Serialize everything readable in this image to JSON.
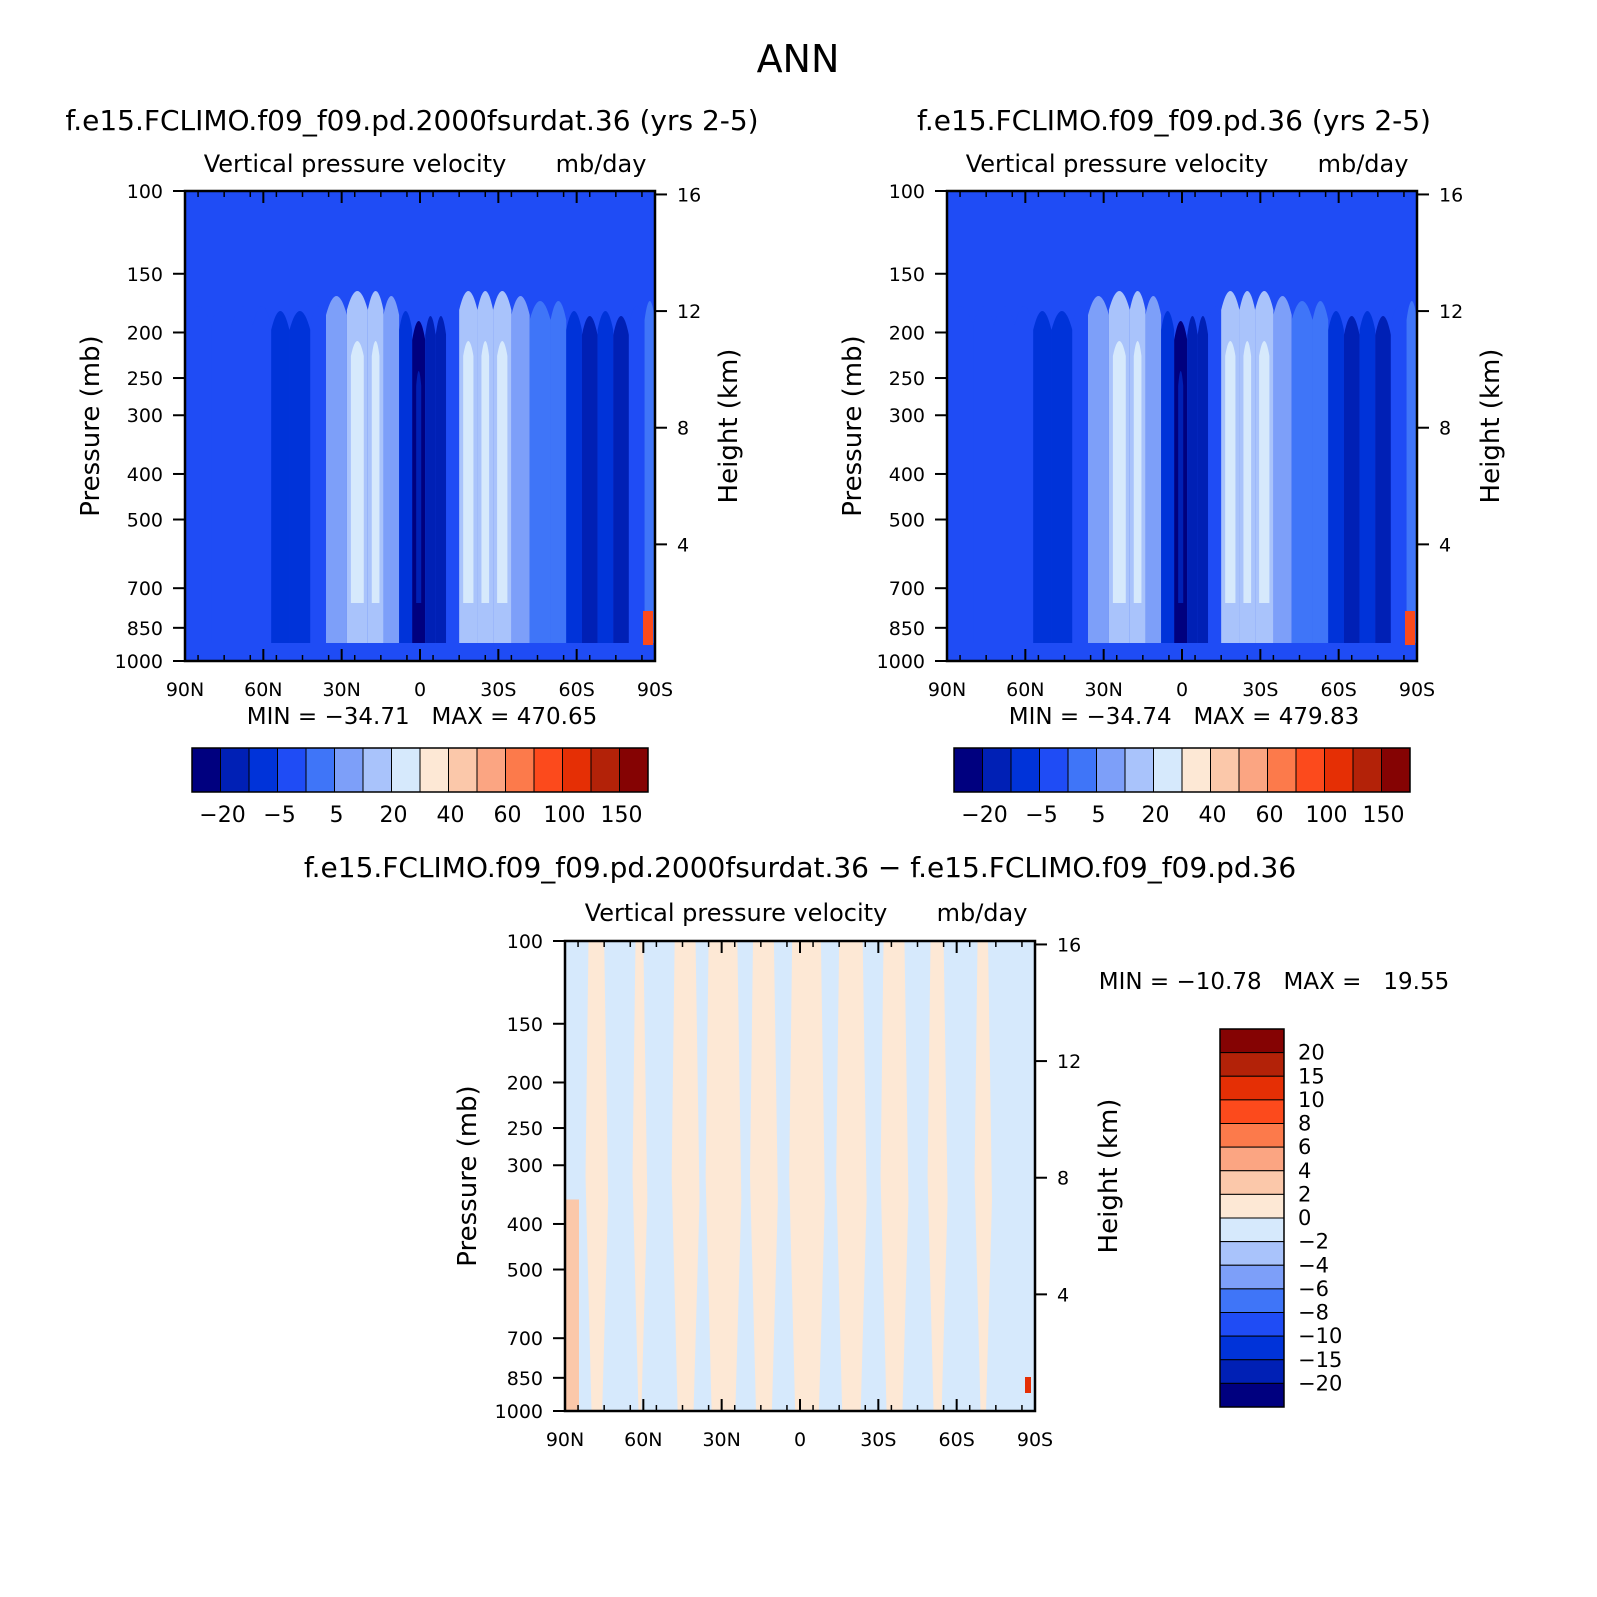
{
  "page_title": "ANN",
  "colors": {
    "seq": [
      "#00007f",
      "#0020b5",
      "#0033d9",
      "#1f4cf5",
      "#3f75f8",
      "#7d9ff9",
      "#a9c3fb",
      "#d6e9fc",
      "#fde8d5",
      "#fbc8aa",
      "#fba582",
      "#fc7a4b",
      "#fc4a1c",
      "#e52f05",
      "#b32208",
      "#850303"
    ],
    "diff": [
      "#00007f",
      "#0020b5",
      "#0033d9",
      "#1f4cf5",
      "#3f75f8",
      "#7d9ff9",
      "#a9c3fb",
      "#d6e9fc",
      "#fde8d5",
      "#fbc8aa",
      "#fba582",
      "#fc7a4b",
      "#fc4a1c",
      "#e52f05",
      "#b32208",
      "#850303"
    ]
  },
  "chart_data": [
    {
      "type": "contour",
      "title": "f.e15.FCLIMO.f09_f09.pd.2000fsurdat.36 (yrs 2-5)",
      "subtitle_left": "Vertical pressure velocity",
      "subtitle_right": "mb/day",
      "xlabel": "",
      "ylabel": "Pressure (mb)",
      "ylabel_right": "Height (km)",
      "x_ticks": [
        "90N",
        "60N",
        "30N",
        "0",
        "30S",
        "60S",
        "90S"
      ],
      "y_ticks": [
        "100",
        "150",
        "200",
        "250",
        "300",
        "400",
        "500",
        "700",
        "850",
        "1000"
      ],
      "y_right_ticks": [
        "16",
        "12",
        "8",
        "4"
      ],
      "min_label": "MIN",
      "min_value": "-34.71",
      "max_label": "MAX",
      "max_value": "470.65",
      "stats_text": "MIN = −34.71   MAX = 470.65",
      "colorbar_labels": [
        "−20",
        "−5",
        "5",
        "20",
        "40",
        "60",
        "100",
        "150"
      ],
      "fields": {
        "columns_lat": [
          -90,
          -80,
          -72,
          -64,
          -57,
          -50,
          -42,
          -36,
          -28,
          -20,
          -14,
          -8,
          -3,
          2,
          6,
          10,
          15,
          22,
          28,
          35,
          42,
          50,
          56,
          62,
          68,
          74,
          80,
          86,
          90
        ],
        "column_levels": [
          3,
          3,
          3,
          3,
          2,
          2,
          3,
          5,
          6,
          6,
          5,
          2,
          0,
          1,
          1,
          3,
          6,
          6,
          6,
          5,
          4,
          4,
          2,
          1,
          2,
          1,
          3,
          4,
          4
        ]
      }
    },
    {
      "type": "contour",
      "title": "f.e15.FCLIMO.f09_f09.pd.36 (yrs 2-5)",
      "subtitle_left": "Vertical pressure velocity",
      "subtitle_right": "mb/day",
      "xlabel": "",
      "ylabel": "Pressure (mb)",
      "ylabel_right": "Height (km)",
      "x_ticks": [
        "90N",
        "60N",
        "30N",
        "0",
        "30S",
        "60S",
        "90S"
      ],
      "y_ticks": [
        "100",
        "150",
        "200",
        "250",
        "300",
        "400",
        "500",
        "700",
        "850",
        "1000"
      ],
      "y_right_ticks": [
        "16",
        "12",
        "8",
        "4"
      ],
      "min_label": "MIN",
      "min_value": "-34.74",
      "max_label": "MAX",
      "max_value": "479.83",
      "stats_text": "MIN = −34.74   MAX = 479.83",
      "colorbar_labels": [
        "−20",
        "−5",
        "5",
        "20",
        "40",
        "60",
        "100",
        "150"
      ],
      "fields": {
        "columns_lat": [
          -90,
          -80,
          -72,
          -64,
          -57,
          -50,
          -42,
          -36,
          -28,
          -20,
          -14,
          -8,
          -3,
          2,
          6,
          10,
          15,
          22,
          28,
          35,
          42,
          50,
          56,
          62,
          68,
          74,
          80,
          86,
          90
        ],
        "column_levels": [
          3,
          3,
          3,
          3,
          2,
          2,
          3,
          5,
          6,
          6,
          5,
          2,
          0,
          1,
          1,
          3,
          6,
          6,
          6,
          5,
          4,
          4,
          2,
          1,
          2,
          1,
          3,
          4,
          4
        ]
      }
    },
    {
      "type": "contour",
      "title": "f.e15.FCLIMO.f09_f09.pd.2000fsurdat.36 − f.e15.FCLIMO.f09_f09.pd.36",
      "subtitle_left": "Vertical pressure velocity",
      "subtitle_right": "mb/day",
      "xlabel": "",
      "ylabel": "Pressure (mb)",
      "ylabel_right": "Height (km)",
      "x_ticks": [
        "90N",
        "60N",
        "30N",
        "0",
        "30S",
        "60S",
        "90S"
      ],
      "y_ticks": [
        "100",
        "150",
        "200",
        "250",
        "300",
        "400",
        "500",
        "700",
        "850",
        "1000"
      ],
      "y_right_ticks": [
        "16",
        "12",
        "8",
        "4"
      ],
      "min_label": "MIN",
      "min_value": "-10.78",
      "max_label": "MAX",
      "max_value": "19.55",
      "stats_text": "MIN = −10.78   MAX =   19.55",
      "colorbar_labels": [
        "20",
        "15",
        "10",
        "8",
        "6",
        "4",
        "2",
        "0",
        "−2",
        "−4",
        "−6",
        "−8",
        "−10",
        "−15",
        "−20"
      ],
      "fields": {
        "bands_lat": [
          -90,
          -81,
          -75,
          -63,
          -60,
          -48,
          -40,
          -35,
          -24,
          -18,
          -10,
          -3,
          8,
          15,
          24,
          32,
          40,
          50,
          55,
          68,
          72,
          84,
          90
        ],
        "band_sign": [
          -1,
          1,
          -1,
          1,
          -1,
          1,
          -1,
          1,
          -1,
          1,
          -1,
          1,
          -1,
          1,
          -1,
          1,
          -1,
          1,
          -1,
          1,
          -1,
          -1
        ]
      }
    }
  ]
}
